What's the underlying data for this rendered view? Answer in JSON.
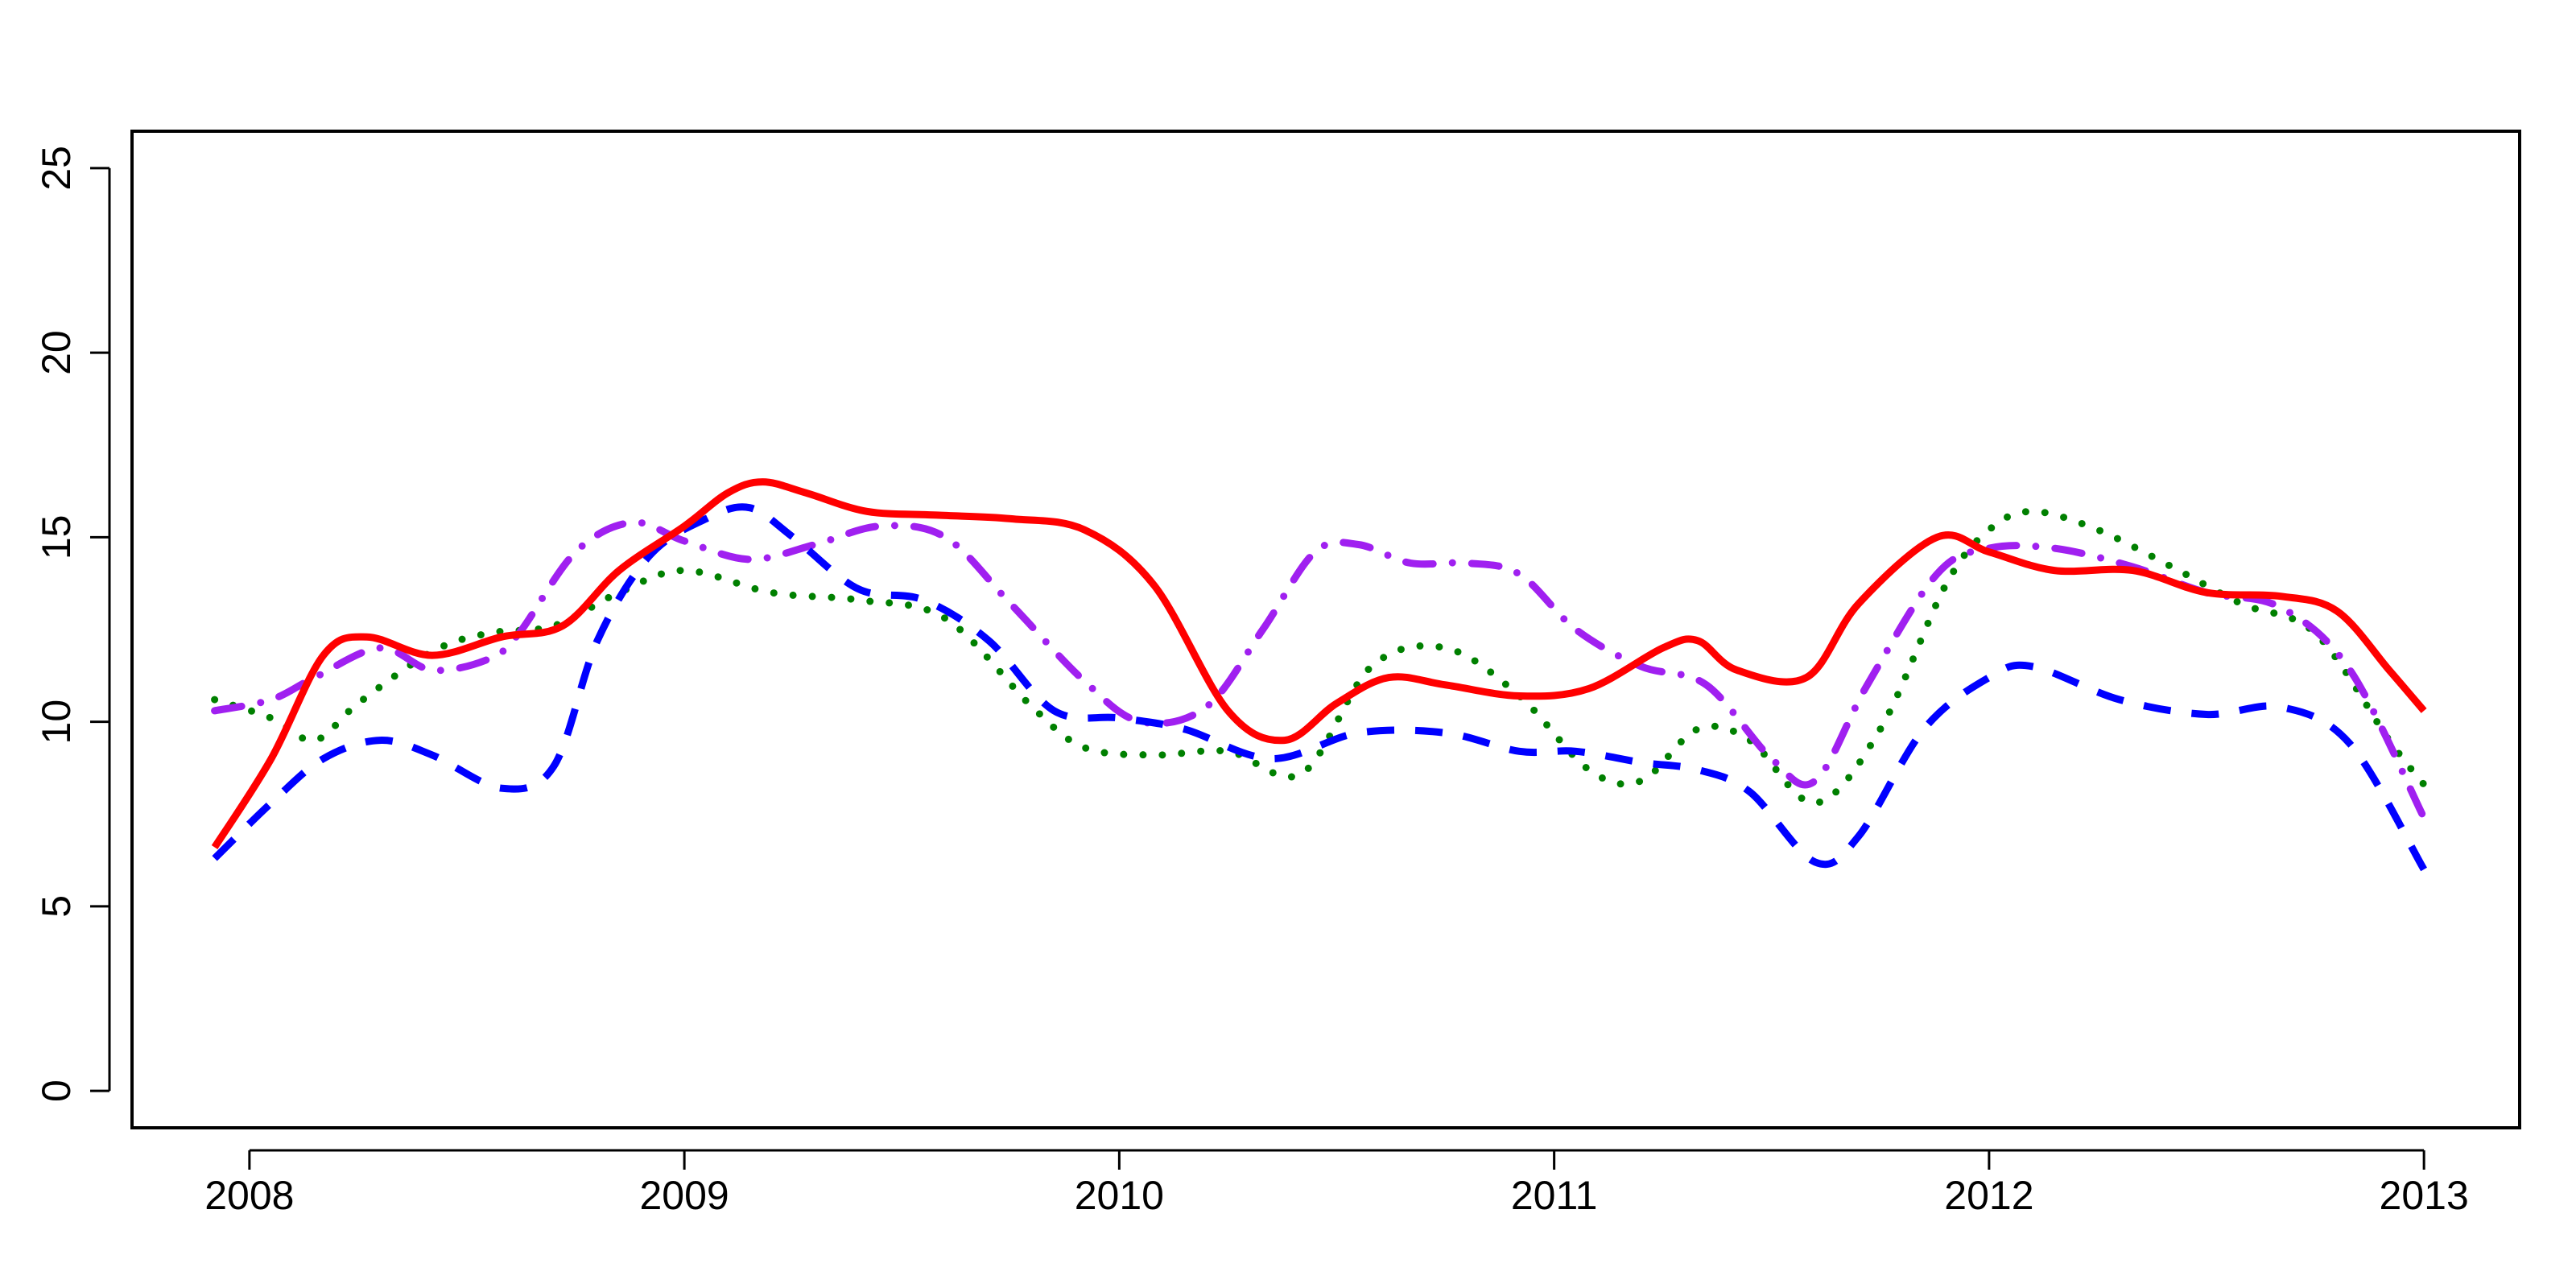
{
  "chart_data": {
    "type": "line",
    "title": "",
    "xlabel": "",
    "ylabel": "",
    "xlim": [
      2007.73,
      2013.22
    ],
    "ylim": [
      -1,
      26
    ],
    "x_ticks": [
      2008,
      2009,
      2010,
      2011,
      2012,
      2013
    ],
    "x_tick_labels": [
      "2008",
      "2009",
      "2010",
      "2011",
      "2012",
      "2013"
    ],
    "y_ticks": [
      0,
      5,
      10,
      15,
      20,
      25
    ],
    "y_tick_labels": [
      "0",
      "5",
      "10",
      "15",
      "20",
      "25"
    ],
    "grid": false,
    "series": [
      {
        "color": "#ff0000",
        "dash": "solid",
        "x": [
          2007.92,
          2008.05,
          2008.17,
          2008.27,
          2008.42,
          2008.58,
          2008.72,
          2008.85,
          2009.0,
          2009.1,
          2009.18,
          2009.28,
          2009.42,
          2009.58,
          2009.75,
          2009.92,
          2010.08,
          2010.25,
          2010.38,
          2010.5,
          2010.62,
          2010.75,
          2010.92,
          2011.08,
          2011.25,
          2011.33,
          2011.42,
          2011.58,
          2011.7,
          2011.88,
          2012.0,
          2012.15,
          2012.33,
          2012.5,
          2012.67,
          2012.8,
          2012.92,
          2013.0
        ],
        "y": [
          6.6,
          9.0,
          11.8,
          12.3,
          11.8,
          12.3,
          12.6,
          14.1,
          15.3,
          16.2,
          16.5,
          16.2,
          15.7,
          15.6,
          15.5,
          15.2,
          13.7,
          10.3,
          9.5,
          10.5,
          11.2,
          11.0,
          10.7,
          10.9,
          12.0,
          12.2,
          11.4,
          11.2,
          13.2,
          15.0,
          14.6,
          14.1,
          14.1,
          13.5,
          13.4,
          13.0,
          11.4,
          10.3
        ]
      },
      {
        "color": "#0000ff",
        "dash": "dashed",
        "x": [
          2007.92,
          2008.05,
          2008.17,
          2008.3,
          2008.42,
          2008.58,
          2008.7,
          2008.8,
          2008.92,
          2009.05,
          2009.15,
          2009.25,
          2009.4,
          2009.55,
          2009.7,
          2009.85,
          2010.0,
          2010.15,
          2010.35,
          2010.55,
          2010.75,
          2010.92,
          2011.05,
          2011.2,
          2011.33,
          2011.45,
          2011.6,
          2011.7,
          2011.85,
          2012.0,
          2012.1,
          2012.3,
          2012.5,
          2012.67,
          2012.83,
          2013.0
        ],
        "y": [
          6.3,
          7.8,
          9.0,
          9.5,
          9.1,
          8.2,
          8.8,
          12.2,
          14.5,
          15.5,
          15.8,
          15.0,
          13.6,
          13.3,
          12.2,
          10.3,
          10.1,
          9.8,
          9.0,
          9.7,
          9.7,
          9.2,
          9.2,
          8.9,
          8.7,
          8.1,
          6.2,
          6.9,
          9.8,
          11.2,
          11.5,
          10.6,
          10.2,
          10.4,
          9.4,
          6.0
        ]
      },
      {
        "color": "#008000",
        "dash": "dotted",
        "x": [
          2007.92,
          2008.05,
          2008.15,
          2008.25,
          2008.42,
          2008.55,
          2008.7,
          2008.85,
          2009.0,
          2009.2,
          2009.4,
          2009.6,
          2009.8,
          2009.92,
          2010.08,
          2010.25,
          2010.42,
          2010.58,
          2010.75,
          2010.92,
          2011.08,
          2011.2,
          2011.33,
          2011.45,
          2011.6,
          2011.75,
          2011.9,
          2012.0,
          2012.1,
          2012.25,
          2012.42,
          2012.58,
          2012.75,
          2012.92,
          2013.0
        ],
        "y": [
          10.6,
          10.1,
          9.5,
          10.5,
          11.9,
          12.4,
          12.6,
          13.5,
          14.1,
          13.5,
          13.3,
          12.8,
          10.4,
          9.3,
          9.1,
          9.2,
          8.6,
          11.5,
          12.0,
          10.7,
          8.7,
          8.4,
          9.8,
          9.5,
          7.8,
          9.8,
          13.7,
          15.2,
          15.7,
          15.2,
          14.2,
          13.2,
          12.4,
          9.5,
          8.3
        ]
      },
      {
        "color": "#a020f0",
        "dash": "dashdot",
        "x": [
          2007.92,
          2008.05,
          2008.15,
          2008.3,
          2008.42,
          2008.55,
          2008.62,
          2008.75,
          2008.88,
          2009.0,
          2009.15,
          2009.3,
          2009.45,
          2009.6,
          2009.75,
          2009.92,
          2010.05,
          2010.2,
          2010.33,
          2010.45,
          2010.55,
          2010.67,
          2010.8,
          2010.92,
          2011.05,
          2011.2,
          2011.35,
          2011.5,
          2011.6,
          2011.72,
          2011.88,
          2012.0,
          2012.15,
          2012.33,
          2012.5,
          2012.67,
          2012.83,
          2013.0
        ],
        "y": [
          10.3,
          10.6,
          11.2,
          12.0,
          11.4,
          11.7,
          12.4,
          14.6,
          15.4,
          14.9,
          14.4,
          14.8,
          15.3,
          15.0,
          13.2,
          11.1,
          10.0,
          10.4,
          12.5,
          14.6,
          14.8,
          14.3,
          14.3,
          14.0,
          12.5,
          11.5,
          11.0,
          9.0,
          8.4,
          11.0,
          14.0,
          14.7,
          14.7,
          14.2,
          13.5,
          13.1,
          11.4,
          7.4
        ]
      }
    ]
  }
}
